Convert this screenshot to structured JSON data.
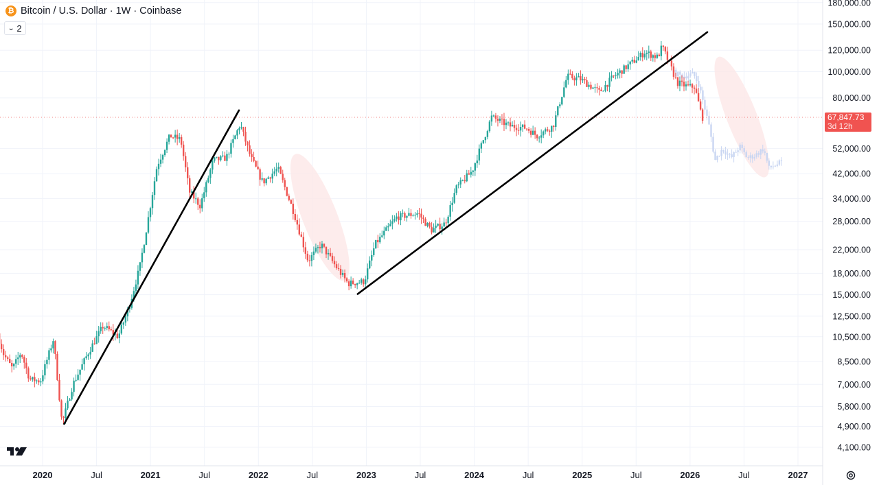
{
  "header": {
    "symbol_icon_glyph": "₿",
    "title": "Bitcoin / U.S. Dollar · 1W · Coinbase",
    "indicator_count": "2"
  },
  "price_tag": {
    "price": "67,847.73",
    "countdown": "3d 12h"
  },
  "icons": [
    "bitcoin-coin-icon",
    "chevron-down-icon",
    "tradingview-logo-icon",
    "settings-gear-icon"
  ],
  "colors": {
    "up": "#26a69a",
    "down": "#ef5350",
    "trend_line": "#000000",
    "highlight_fill": "#fde7e7",
    "projection": "#c9d6f2",
    "grid": "#f0f3fa",
    "axis_text": "#131722"
  },
  "chart_data": {
    "type": "candlestick",
    "title": "Bitcoin / U.S. Dollar · 1W · Coinbase",
    "scale": "log",
    "ylim": [
      3700,
      185000
    ],
    "xlim": [
      2019.6,
      2027.15
    ],
    "y_ticks": [
      {
        "value": 180000,
        "label": "180,000.00"
      },
      {
        "value": 150000,
        "label": "150,000.00"
      },
      {
        "value": 120000,
        "label": "120,000.00"
      },
      {
        "value": 100000,
        "label": "100,000.00"
      },
      {
        "value": 80000,
        "label": "80,000.00"
      },
      {
        "value": 52000,
        "label": "52,000.00"
      },
      {
        "value": 42000,
        "label": "42,000.00"
      },
      {
        "value": 34000,
        "label": "34,000.00"
      },
      {
        "value": 28000,
        "label": "28,000.00"
      },
      {
        "value": 22000,
        "label": "22,000.00"
      },
      {
        "value": 18000,
        "label": "18,000.00"
      },
      {
        "value": 15000,
        "label": "15,000.00"
      },
      {
        "value": 12500,
        "label": "12,500.00"
      },
      {
        "value": 10500,
        "label": "10,500.00"
      },
      {
        "value": 8500,
        "label": "8,500.00"
      },
      {
        "value": 7000,
        "label": "7,000.00"
      },
      {
        "value": 5800,
        "label": "5,800.00"
      },
      {
        "value": 4900,
        "label": "4,900.00"
      },
      {
        "value": 4100,
        "label": "4,100.00"
      }
    ],
    "x_ticks": [
      {
        "t": 2020.0,
        "label": "2020",
        "bold": true
      },
      {
        "t": 2020.5,
        "label": "Jul",
        "bold": false
      },
      {
        "t": 2021.0,
        "label": "2021",
        "bold": true
      },
      {
        "t": 2021.5,
        "label": "Jul",
        "bold": false
      },
      {
        "t": 2022.0,
        "label": "2022",
        "bold": true
      },
      {
        "t": 2022.5,
        "label": "Jul",
        "bold": false
      },
      {
        "t": 2023.0,
        "label": "2023",
        "bold": true
      },
      {
        "t": 2023.5,
        "label": "Jul",
        "bold": false
      },
      {
        "t": 2024.0,
        "label": "2024",
        "bold": true
      },
      {
        "t": 2024.5,
        "label": "Jul",
        "bold": false
      },
      {
        "t": 2025.0,
        "label": "2025",
        "bold": true
      },
      {
        "t": 2025.5,
        "label": "Jul",
        "bold": false
      },
      {
        "t": 2026.0,
        "label": "2026",
        "bold": true
      },
      {
        "t": 2026.5,
        "label": "Jul",
        "bold": false
      },
      {
        "t": 2027.0,
        "label": "2027",
        "bold": true
      }
    ],
    "price_path": [
      [
        2019.6,
        10800
      ],
      [
        2019.66,
        9000
      ],
      [
        2019.74,
        8000
      ],
      [
        2019.82,
        9200
      ],
      [
        2019.9,
        7300
      ],
      [
        2020.0,
        7200
      ],
      [
        2020.12,
        10300
      ],
      [
        2020.2,
        5000
      ],
      [
        2020.3,
        7000
      ],
      [
        2020.45,
        9300
      ],
      [
        2020.58,
        11500
      ],
      [
        2020.72,
        10500
      ],
      [
        2020.82,
        13500
      ],
      [
        2020.92,
        19000
      ],
      [
        2021.0,
        29000
      ],
      [
        2021.08,
        45000
      ],
      [
        2021.2,
        58000
      ],
      [
        2021.3,
        56000
      ],
      [
        2021.38,
        36000
      ],
      [
        2021.48,
        32000
      ],
      [
        2021.6,
        47000
      ],
      [
        2021.72,
        48000
      ],
      [
        2021.85,
        64000
      ],
      [
        2021.95,
        48000
      ],
      [
        2022.06,
        39000
      ],
      [
        2022.2,
        44000
      ],
      [
        2022.35,
        30000
      ],
      [
        2022.48,
        20000
      ],
      [
        2022.6,
        23000
      ],
      [
        2022.72,
        19500
      ],
      [
        2022.85,
        16500
      ],
      [
        2023.0,
        16800
      ],
      [
        2023.1,
        23000
      ],
      [
        2023.3,
        29000
      ],
      [
        2023.5,
        30000
      ],
      [
        2023.62,
        26000
      ],
      [
        2023.75,
        27500
      ],
      [
        2023.85,
        37000
      ],
      [
        2024.0,
        43000
      ],
      [
        2024.18,
        68000
      ],
      [
        2024.35,
        63000
      ],
      [
        2024.5,
        62000
      ],
      [
        2024.6,
        58000
      ],
      [
        2024.75,
        63000
      ],
      [
        2024.88,
        96000
      ],
      [
        2025.0,
        94000
      ],
      [
        2025.18,
        84000
      ],
      [
        2025.3,
        95000
      ],
      [
        2025.48,
        108000
      ],
      [
        2025.6,
        118000
      ],
      [
        2025.72,
        113000
      ],
      [
        2025.76,
        124000
      ],
      [
        2025.82,
        109000
      ],
      [
        2025.9,
        91000
      ],
      [
        2026.0,
        88000
      ],
      [
        2026.06,
        88000
      ],
      [
        2026.1,
        76000
      ],
      [
        2026.13,
        67848
      ]
    ],
    "projection_path": [
      [
        2025.85,
        100000
      ],
      [
        2025.95,
        96000
      ],
      [
        2026.05,
        98000
      ],
      [
        2026.1,
        90000
      ],
      [
        2026.15,
        75000
      ],
      [
        2026.2,
        62000
      ],
      [
        2026.25,
        47000
      ],
      [
        2026.32,
        52000
      ],
      [
        2026.4,
        48000
      ],
      [
        2026.48,
        53000
      ],
      [
        2026.55,
        48000
      ],
      [
        2026.62,
        49000
      ],
      [
        2026.7,
        52000
      ],
      [
        2026.75,
        44000
      ],
      [
        2026.8,
        45000
      ],
      [
        2026.85,
        46000
      ]
    ],
    "trend_lines": [
      {
        "name": "uptrend-2020-2021",
        "start": [
          2020.2,
          5000
        ],
        "end": [
          2021.82,
          72000
        ]
      },
      {
        "name": "uptrend-2023-2025",
        "start": [
          2022.92,
          15100
        ],
        "end": [
          2026.16,
          140000
        ]
      }
    ],
    "highlight_ellipses": [
      {
        "name": "bear-market-2022",
        "center": [
          2022.57,
          29000
        ],
        "span_x": 0.52,
        "span_y_factor": 1.8
      },
      {
        "name": "bear-market-2026",
        "center": [
          2026.48,
          68000
        ],
        "span_x": 0.45,
        "span_y_factor": 1.75
      }
    ],
    "last_price": 67847.73
  }
}
